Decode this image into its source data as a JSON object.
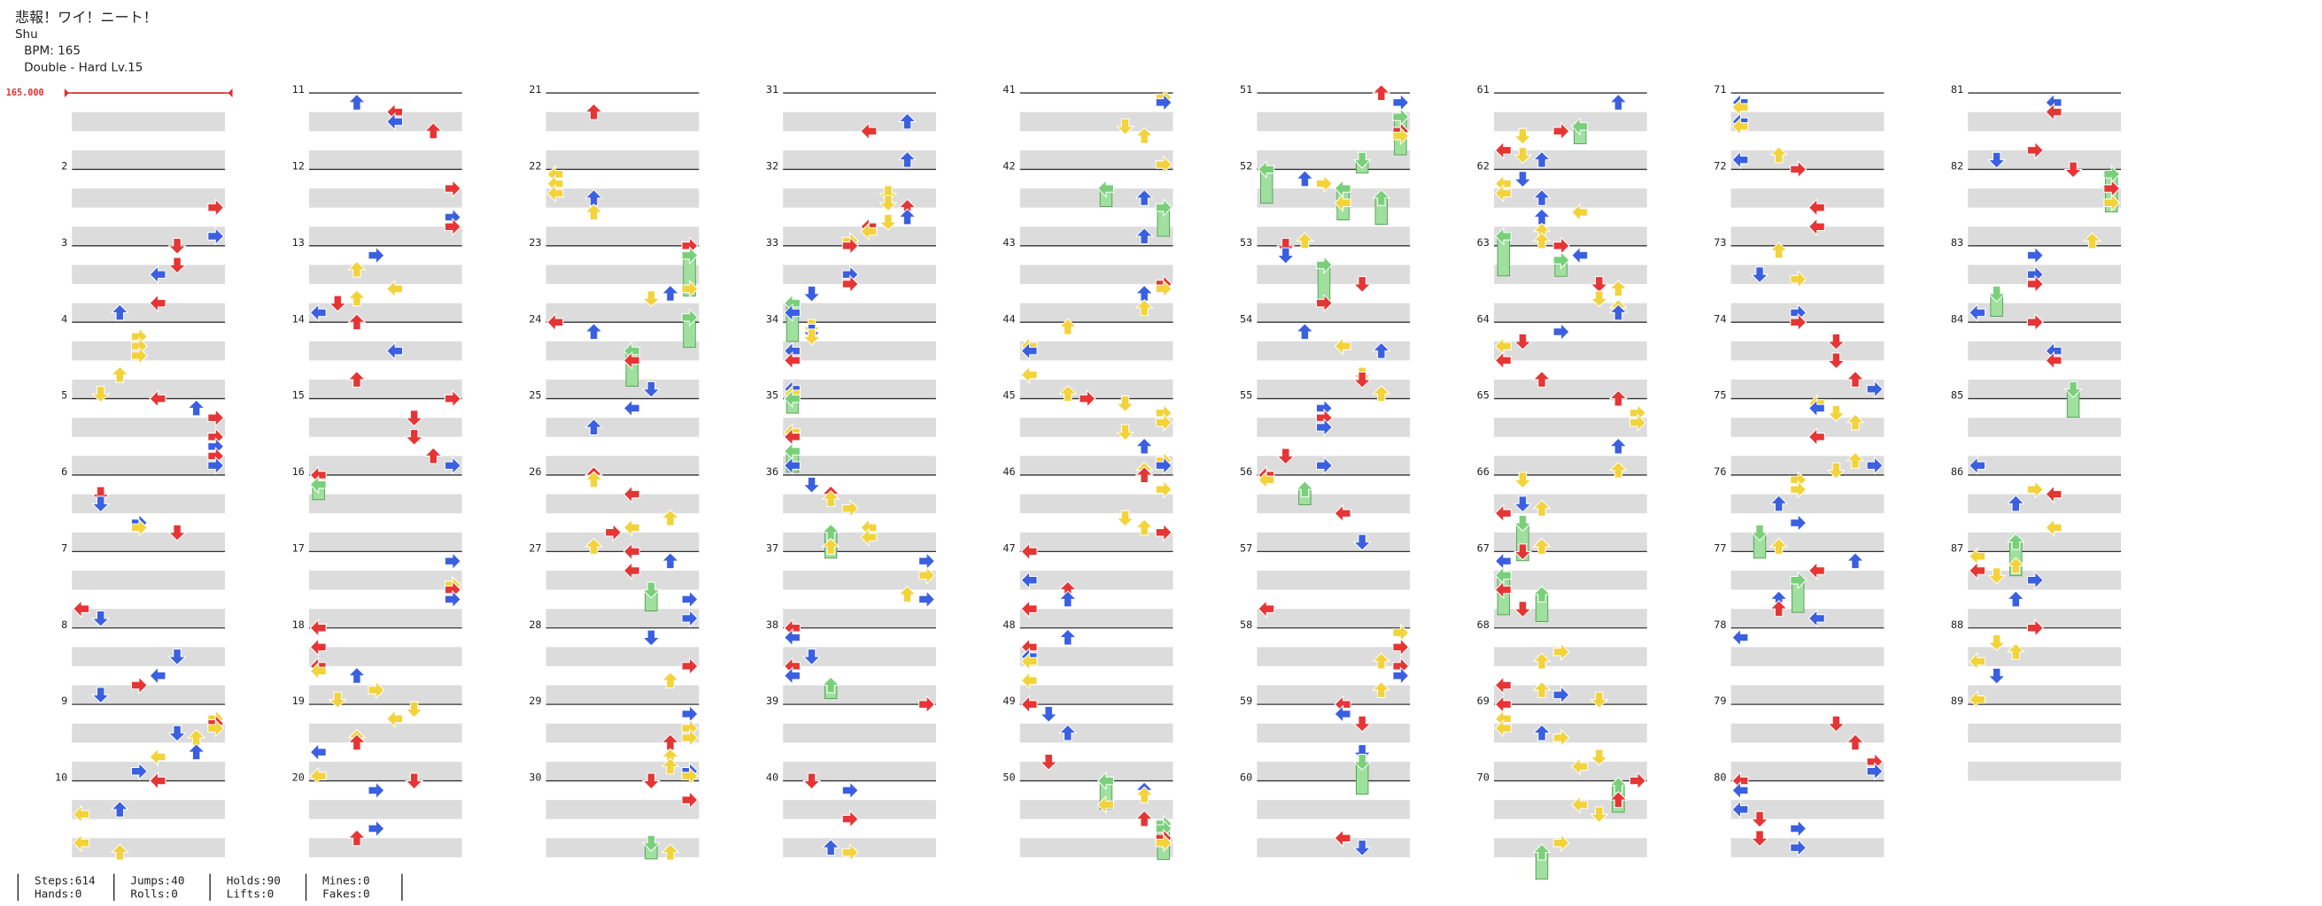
{
  "header": {
    "title": "悲報！ワイ！ニート！",
    "artist": "Shu",
    "bpm": "BPM: 165",
    "difficulty": "Double - Hard Lv.15"
  },
  "bpm_marker": "165.000",
  "measure_numbers": [
    2,
    3,
    4,
    5,
    6,
    7,
    8,
    9,
    10,
    11,
    12,
    13,
    14,
    15,
    16,
    17,
    18,
    19,
    20,
    21,
    22,
    23,
    24,
    25,
    26,
    27,
    28,
    29,
    30,
    31,
    32,
    33,
    34,
    35,
    36,
    37,
    38,
    39,
    40,
    41,
    42,
    43,
    44,
    45,
    46,
    47,
    48,
    49,
    50,
    51,
    52,
    53,
    54,
    55,
    56,
    57,
    58,
    59,
    60,
    61,
    62,
    63,
    64,
    65,
    66,
    67,
    68,
    69,
    70,
    71,
    72,
    73,
    74,
    75,
    76,
    77,
    78,
    79,
    80,
    81,
    82,
    83,
    84,
    85,
    86,
    87,
    88,
    89
  ],
  "stats": [
    [
      "Steps:614",
      "Hands:0"
    ],
    [
      "Jumps:40",
      "Rolls:0"
    ],
    [
      "Holds:90",
      "Lifts:0"
    ],
    [
      "Mines:0",
      "Fakes:0"
    ]
  ]
}
